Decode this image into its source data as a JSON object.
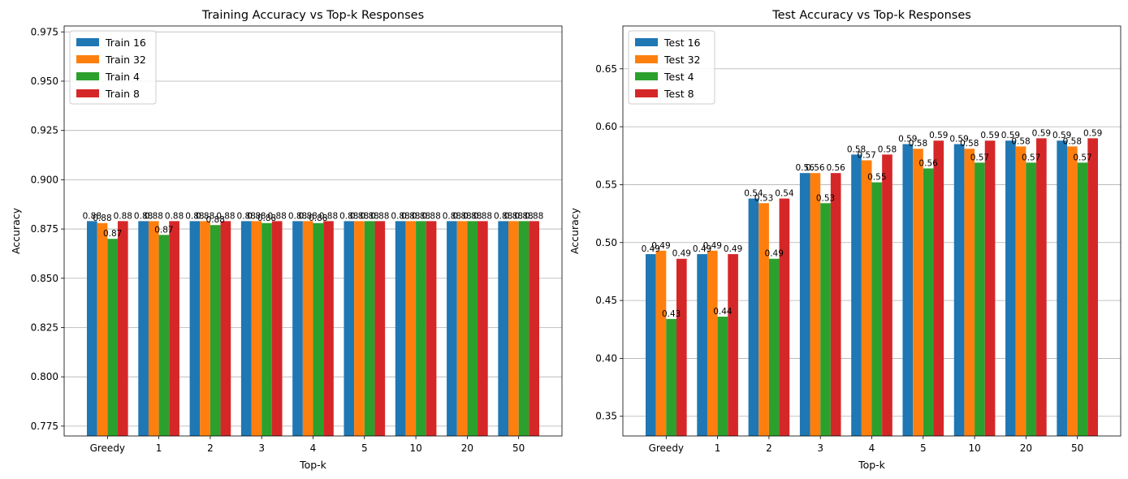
{
  "chart_data": [
    {
      "type": "bar",
      "title": "Training Accuracy vs Top-k Responses",
      "xlabel": "Top-k",
      "ylabel": "Accuracy",
      "ylim": [
        0.77,
        0.978
      ],
      "yticks": [
        "0.775",
        "0.800",
        "0.825",
        "0.850",
        "0.875",
        "0.900",
        "0.925",
        "0.950",
        "0.975"
      ],
      "grid": "y",
      "legend": "top-left",
      "categories": [
        "Greedy",
        "1",
        "2",
        "3",
        "4",
        "5",
        "10",
        "20",
        "50"
      ],
      "series": [
        {
          "name": "Train 16",
          "color": "#1f77b4",
          "values": [
            0.879,
            0.879,
            0.879,
            0.879,
            0.879,
            0.879,
            0.879,
            0.879,
            0.879
          ],
          "labels": [
            "0.88",
            "0.88",
            "0.88",
            "0.88",
            "0.88",
            "0.88",
            "0.88",
            "0.88",
            "0.88"
          ]
        },
        {
          "name": "Train 32",
          "color": "#ff7f0e",
          "values": [
            0.878,
            0.879,
            0.879,
            0.879,
            0.879,
            0.879,
            0.879,
            0.879,
            0.879
          ],
          "labels": [
            "0.88",
            "0.88",
            "0.88",
            "0.88",
            "0.88",
            "0.88",
            "0.88",
            "0.88",
            "0.88"
          ]
        },
        {
          "name": "Train 4",
          "color": "#2ca02c",
          "values": [
            0.87,
            0.872,
            0.877,
            0.878,
            0.878,
            0.879,
            0.879,
            0.879,
            0.879
          ],
          "labels": [
            "0.87",
            "0.87",
            "0.88",
            "0.88",
            "0.88",
            "0.88",
            "0.88",
            "0.88",
            "0.88"
          ]
        },
        {
          "name": "Train 8",
          "color": "#d62728",
          "values": [
            0.879,
            0.879,
            0.879,
            0.879,
            0.879,
            0.879,
            0.879,
            0.879,
            0.879
          ],
          "labels": [
            "0.88",
            "0.88",
            "0.88",
            "0.88",
            "0.88",
            "0.88",
            "0.88",
            "0.88",
            "0.88"
          ]
        }
      ]
    },
    {
      "type": "bar",
      "title": "Test Accuracy vs Top-k Responses",
      "xlabel": "Top-k",
      "ylabel": "Accuracy",
      "ylim": [
        0.333,
        0.687
      ],
      "yticks": [
        "0.35",
        "0.40",
        "0.45",
        "0.50",
        "0.55",
        "0.60",
        "0.65"
      ],
      "grid": "y",
      "legend": "top-left",
      "categories": [
        "Greedy",
        "1",
        "2",
        "3",
        "4",
        "5",
        "10",
        "20",
        "50"
      ],
      "series": [
        {
          "name": "Test 16",
          "color": "#1f77b4",
          "values": [
            0.49,
            0.49,
            0.538,
            0.56,
            0.576,
            0.585,
            0.585,
            0.588,
            0.588
          ],
          "labels": [
            "0.49",
            "0.49",
            "0.54",
            "0.56",
            "0.58",
            "0.59",
            "0.59",
            "0.59",
            "0.59"
          ]
        },
        {
          "name": "Test 32",
          "color": "#ff7f0e",
          "values": [
            0.493,
            0.493,
            0.534,
            0.56,
            0.571,
            0.581,
            0.581,
            0.583,
            0.583
          ],
          "labels": [
            "0.49",
            "0.49",
            "0.53",
            "0.56",
            "0.57",
            "0.58",
            "0.58",
            "0.58",
            "0.58"
          ]
        },
        {
          "name": "Test 4",
          "color": "#2ca02c",
          "values": [
            0.434,
            0.436,
            0.486,
            0.534,
            0.552,
            0.564,
            0.569,
            0.569,
            0.569
          ],
          "labels": [
            "0.43",
            "0.44",
            "0.49",
            "0.53",
            "0.55",
            "0.56",
            "0.57",
            "0.57",
            "0.57"
          ]
        },
        {
          "name": "Test 8",
          "color": "#d62728",
          "values": [
            0.486,
            0.49,
            0.538,
            0.56,
            0.576,
            0.588,
            0.588,
            0.59,
            0.59
          ],
          "labels": [
            "0.49",
            "0.49",
            "0.54",
            "0.56",
            "0.58",
            "0.59",
            "0.59",
            "0.59",
            "0.59"
          ]
        }
      ]
    }
  ]
}
